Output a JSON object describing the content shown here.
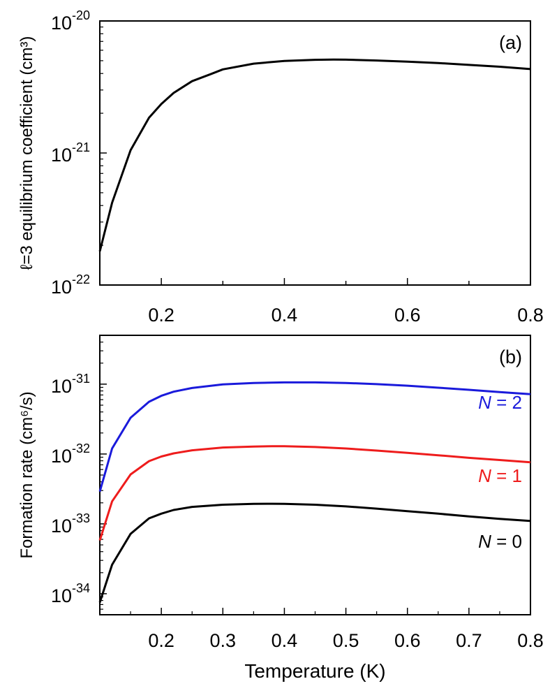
{
  "chart_data": [
    {
      "type": "line",
      "panel_label": "(a)",
      "xlabel": "",
      "ylabel": "ℓ=3 equilibrium coefficient (cm³)",
      "yscale": "log",
      "xlim": [
        0.1,
        0.8
      ],
      "ylim": [
        1e-22,
        1e-20
      ],
      "x_ticks": [
        "0.2",
        "0.4",
        "0.6",
        "0.8"
      ],
      "y_ticks": [
        {
          "base": "10",
          "exp": "-22"
        },
        {
          "base": "10",
          "exp": "-21"
        },
        {
          "base": "10",
          "exp": "-20"
        }
      ],
      "grid": false,
      "series": [
        {
          "color": "#000000",
          "x": [
            0.1,
            0.12,
            0.15,
            0.18,
            0.2,
            0.22,
            0.25,
            0.28,
            0.3,
            0.35,
            0.4,
            0.45,
            0.48,
            0.5,
            0.55,
            0.6,
            0.65,
            0.7,
            0.75,
            0.8
          ],
          "y": [
            1.8e-22,
            4.2e-22,
            1.05e-21,
            1.85e-21,
            2.35e-21,
            2.85e-21,
            3.5e-21,
            3.95e-21,
            4.3e-21,
            4.75e-21,
            4.98e-21,
            5.08e-21,
            5.1e-21,
            5.09e-21,
            5.02e-21,
            4.92e-21,
            4.8e-21,
            4.65e-21,
            4.5e-21,
            4.32e-21
          ]
        }
      ]
    },
    {
      "type": "line",
      "panel_label": "(b)",
      "xlabel": "Temperature (K)",
      "ylabel": "Formation rate (cm⁶/s)",
      "yscale": "log",
      "xlim": [
        0.1,
        0.8
      ],
      "ylim": [
        5e-35,
        5e-31
      ],
      "x_ticks": [
        "0.2",
        "0.3",
        "0.4",
        "0.5",
        "0.6",
        "0.7",
        "0.8"
      ],
      "y_ticks": [
        {
          "base": "10",
          "exp": "-34"
        },
        {
          "base": "10",
          "exp": "-33"
        },
        {
          "base": "10",
          "exp": "-32"
        },
        {
          "base": "10",
          "exp": "-31"
        }
      ],
      "grid": false,
      "series": [
        {
          "name": "N = 2",
          "color": "#1a1adb",
          "x": [
            0.1,
            0.12,
            0.15,
            0.18,
            0.2,
            0.22,
            0.25,
            0.3,
            0.35,
            0.4,
            0.45,
            0.5,
            0.55,
            0.6,
            0.65,
            0.7,
            0.75,
            0.8
          ],
          "y": [
            2.9e-33,
            1.2e-32,
            3.3e-32,
            5.6e-32,
            6.8e-32,
            7.8e-32,
            8.8e-32,
            9.9e-32,
            1.04e-31,
            1.06e-31,
            1.06e-31,
            1.04e-31,
            1e-31,
            9.5e-32,
            8.9e-32,
            8.3e-32,
            7.7e-32,
            7.2e-32
          ]
        },
        {
          "name": "N = 1",
          "color": "#ee1c1c",
          "x": [
            0.1,
            0.12,
            0.15,
            0.18,
            0.2,
            0.22,
            0.25,
            0.3,
            0.35,
            0.38,
            0.4,
            0.45,
            0.5,
            0.55,
            0.6,
            0.65,
            0.7,
            0.75,
            0.8
          ],
          "y": [
            5.8e-34,
            2.1e-33,
            5.1e-33,
            7.9e-33,
            9.2e-33,
            1.02e-32,
            1.13e-32,
            1.24e-32,
            1.28e-32,
            1.29e-32,
            1.29e-32,
            1.26e-32,
            1.2e-32,
            1.12e-32,
            1.04e-32,
            9.6e-33,
            8.8e-33,
            8.2e-33,
            7.6e-33
          ]
        },
        {
          "name": "N = 0",
          "color": "#000000",
          "x": [
            0.1,
            0.12,
            0.15,
            0.18,
            0.2,
            0.22,
            0.25,
            0.3,
            0.35,
            0.38,
            0.4,
            0.45,
            0.5,
            0.55,
            0.6,
            0.65,
            0.7,
            0.75,
            0.8
          ],
          "y": [
            7.5e-35,
            2.6e-34,
            7.2e-34,
            1.2e-33,
            1.4e-33,
            1.58e-33,
            1.75e-33,
            1.88e-33,
            1.93e-33,
            1.94e-33,
            1.93e-33,
            1.88e-33,
            1.78e-33,
            1.65e-33,
            1.52e-33,
            1.4e-33,
            1.28e-33,
            1.18e-33,
            1.1e-33
          ]
        }
      ]
    }
  ]
}
